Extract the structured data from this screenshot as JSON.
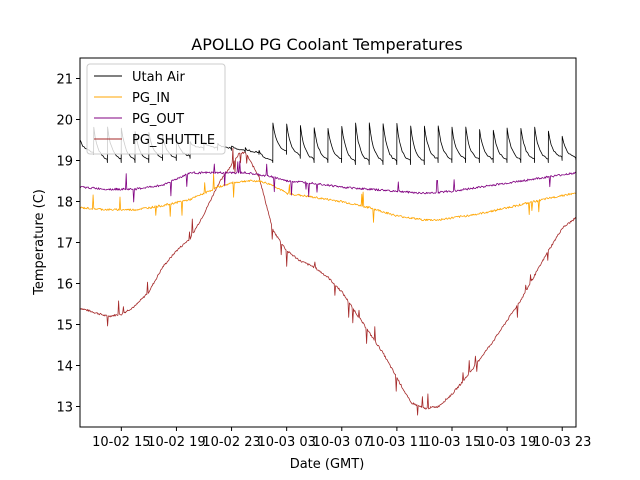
{
  "chart_data": {
    "type": "line",
    "title": "APOLLO PG Coolant Temperatures",
    "xlabel": "Date (GMT)",
    "ylabel": "Temperature (C)",
    "x_unit": "hours since 10-02 12:00 GMT",
    "xlim_hours": [
      0,
      36
    ],
    "ylim": [
      12.5,
      21.5
    ],
    "yticks": [
      13,
      14,
      15,
      16,
      17,
      18,
      19,
      20,
      21
    ],
    "xticks": [
      {
        "hour": 3,
        "label": "10-02 15"
      },
      {
        "hour": 7,
        "label": "10-02 19"
      },
      {
        "hour": 11,
        "label": "10-02 23"
      },
      {
        "hour": 15,
        "label": "10-03 03"
      },
      {
        "hour": 19,
        "label": "10-03 07"
      },
      {
        "hour": 23,
        "label": "10-03 11"
      },
      {
        "hour": 27,
        "label": "10-03 15"
      },
      {
        "hour": 31,
        "label": "10-03 19"
      },
      {
        "hour": 35,
        "label": "10-03 23"
      }
    ],
    "grid": false,
    "legend_position": "top-left",
    "series": [
      {
        "name": "Utah Air",
        "color": "#000000",
        "sawtooth": true,
        "x": [
          0,
          1,
          2,
          3,
          4,
          5,
          6,
          7,
          8,
          9,
          10,
          11,
          12,
          13,
          14,
          15,
          16,
          17,
          18,
          19,
          20,
          21,
          22,
          23,
          24,
          25,
          26,
          27,
          28,
          29,
          30,
          31,
          32,
          33,
          34,
          35,
          36
        ],
        "peaks": [
          19.5,
          19.8,
          19.8,
          19.8,
          19.7,
          19.7,
          19.6,
          19.5,
          19.45,
          19.45,
          19.4,
          19.35,
          19.3,
          19.25,
          19.9,
          19.9,
          19.85,
          19.8,
          19.8,
          19.85,
          19.9,
          19.9,
          19.9,
          19.9,
          19.85,
          19.85,
          19.85,
          19.8,
          19.8,
          19.75,
          19.75,
          19.8,
          19.8,
          19.8,
          19.7,
          19.6,
          19.6
        ],
        "troughs": [
          19.2,
          19.0,
          19.0,
          19.0,
          19.0,
          19.05,
          19.05,
          19.1,
          19.3,
          19.3,
          19.3,
          19.25,
          19.2,
          19.0,
          19.2,
          19.1,
          19.0,
          19.0,
          19.0,
          18.95,
          18.95,
          18.95,
          18.95,
          18.95,
          18.95,
          19.0,
          19.0,
          19.0,
          19.0,
          19.0,
          19.0,
          19.0,
          19.0,
          19.0,
          19.05,
          19.05,
          19.5
        ]
      },
      {
        "name": "PG_IN",
        "color": "#ffa500",
        "x": [
          0,
          2,
          4,
          6,
          8,
          9,
          10,
          11,
          12,
          13,
          14,
          15,
          17,
          19,
          21,
          23,
          25,
          26,
          27,
          29,
          31,
          33,
          35,
          36
        ],
        "y": [
          17.85,
          17.8,
          17.8,
          17.9,
          18.05,
          18.2,
          18.35,
          18.45,
          18.5,
          18.5,
          18.4,
          18.2,
          18.1,
          18.0,
          17.85,
          17.65,
          17.55,
          17.55,
          17.6,
          17.7,
          17.85,
          18.0,
          18.15,
          18.2
        ]
      },
      {
        "name": "PG_OUT",
        "color": "#800080",
        "x": [
          0,
          2,
          4,
          6,
          7,
          8,
          10,
          12,
          14,
          15,
          17,
          19,
          21,
          23,
          25,
          27,
          29,
          31,
          33,
          35,
          36
        ],
        "y": [
          18.35,
          18.3,
          18.3,
          18.4,
          18.55,
          18.7,
          18.7,
          18.7,
          18.6,
          18.5,
          18.45,
          18.35,
          18.3,
          18.25,
          18.2,
          18.25,
          18.35,
          18.45,
          18.55,
          18.65,
          18.7
        ]
      },
      {
        "name": "PG_SHUTTLE",
        "color": "#a52a2a",
        "x": [
          0,
          1,
          2,
          3,
          4,
          5,
          6,
          7,
          8,
          9,
          10,
          11,
          11.5,
          12,
          13,
          14,
          15,
          16,
          17,
          18,
          19,
          20,
          21,
          22,
          23,
          24,
          25,
          26,
          27,
          28,
          29,
          30,
          31,
          32,
          33,
          34,
          35,
          36
        ],
        "y": [
          15.4,
          15.3,
          15.2,
          15.25,
          15.45,
          15.8,
          16.4,
          16.8,
          17.1,
          17.7,
          18.4,
          18.9,
          19.15,
          19.2,
          18.6,
          17.3,
          16.8,
          16.55,
          16.4,
          16.15,
          15.8,
          15.3,
          14.8,
          14.3,
          13.7,
          13.1,
          12.95,
          13.0,
          13.3,
          13.7,
          14.15,
          14.6,
          15.1,
          15.6,
          16.2,
          16.8,
          17.35,
          17.6
        ]
      }
    ]
  }
}
